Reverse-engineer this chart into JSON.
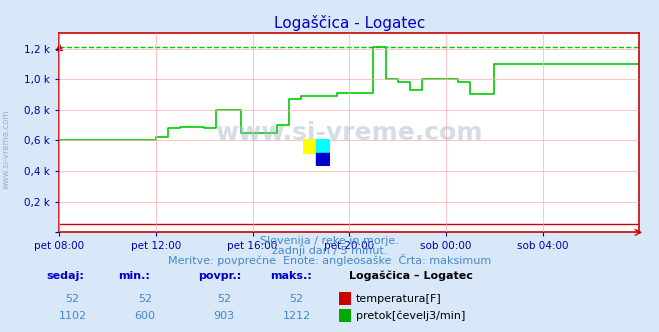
{
  "title": "Logaščica - Logatec",
  "title_color": "#0000cc",
  "bg_color": "#d8e8f8",
  "plot_bg_color": "#ffffff",
  "grid_color": "#ffaaaa",
  "axis_color": "#cc0000",
  "xlabel_color": "#0000aa",
  "ylabel_ticks": [
    "",
    "0,2 k",
    "0,4 k",
    "0,6 k",
    "0,8 k",
    "1,0 k",
    "1,2 k"
  ],
  "ylim": [
    0,
    1300
  ],
  "ytick_positions": [
    0,
    200,
    400,
    600,
    800,
    1000,
    1200
  ],
  "xtick_labels": [
    "pet 08:00",
    "pet 12:00",
    "pet 16:00",
    "pet 20:00",
    "sob 00:00",
    "sob 04:00"
  ],
  "xtick_positions": [
    0,
    240,
    480,
    720,
    960,
    1200
  ],
  "total_minutes": 1440,
  "watermark_text": "www.si-vreme.com",
  "subtitle1": "Slovenija / reke in morje.",
  "subtitle2": "zadnji dan / 5 minut.",
  "subtitle3": "Meritve: povprečne  Enote: angleosaške  Črta: maksimum",
  "subtitle_color": "#4488cc",
  "table_header": [
    "sedaj:",
    "min.:",
    "povpr.:",
    "maks.:",
    "Logaščica – Logatec"
  ],
  "table_color": "#0000cc",
  "row1": [
    "52",
    "52",
    "52",
    "52"
  ],
  "row1_label": "temperatura[F]",
  "row1_color": "#cc0000",
  "row2": [
    "1102",
    "600",
    "903",
    "1212"
  ],
  "row2_label": "pretok[čevelj3/min]",
  "row2_color": "#00aa00",
  "line_color": "#00cc00",
  "dashed_line_color": "#00cc00",
  "temp_line_color": "#cc0000",
  "max_flow": 1212,
  "flow_data_x": [
    0,
    30,
    60,
    90,
    120,
    150,
    180,
    210,
    240,
    270,
    300,
    330,
    360,
    390,
    420,
    450,
    480,
    510,
    540,
    570,
    600,
    630,
    660,
    690,
    720,
    750,
    780,
    810,
    840,
    870,
    900,
    930,
    960,
    990,
    1020,
    1050,
    1080,
    1110,
    1140,
    1170,
    1200,
    1230,
    1260,
    1290,
    1320,
    1350,
    1380,
    1410,
    1440
  ],
  "flow_data_y": [
    600,
    600,
    600,
    600,
    600,
    600,
    600,
    600,
    620,
    680,
    690,
    690,
    680,
    800,
    800,
    650,
    650,
    650,
    700,
    870,
    890,
    890,
    890,
    910,
    910,
    910,
    1212,
    1000,
    980,
    930,
    1000,
    1000,
    1000,
    980,
    900,
    900,
    1100,
    1100,
    1100,
    1100,
    1100,
    1100,
    1100,
    1100,
    1100,
    1100,
    1100,
    1100,
    1100
  ]
}
